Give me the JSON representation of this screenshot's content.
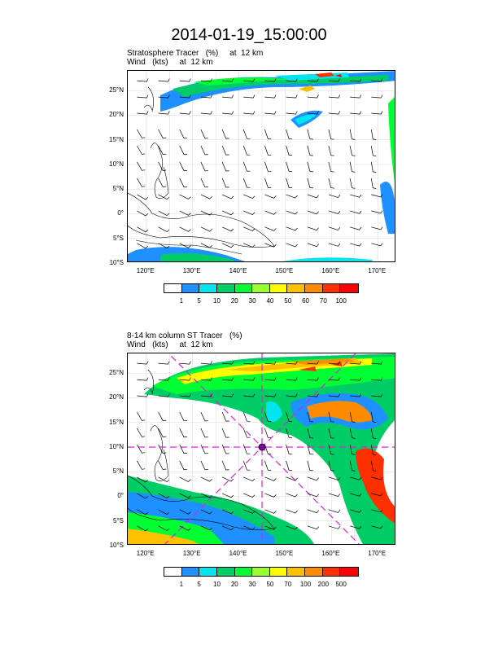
{
  "title": "2014-01-19_15:00:00",
  "panels": [
    {
      "label_line1": "Stratosphere Tracer   (%)     at  12 km",
      "label_line2": "Wind   (kts)     at  12 km",
      "colorbar_labels": [
        "1",
        "5",
        "10",
        "20",
        "30",
        "40",
        "50",
        "60",
        "70",
        "100"
      ],
      "colorbar_colors": [
        "#ffffff",
        "#1e90ff",
        "#00e5ee",
        "#00cd66",
        "#00ff33",
        "#9aff32",
        "#ffff00",
        "#ffc000",
        "#ff8c00",
        "#ff3000",
        "#ff0000"
      ]
    },
    {
      "label_line1": "8-14 km column ST Tracer   (%)",
      "label_line2": "Wind   (kts)     at  12 km",
      "colorbar_labels": [
        "1",
        "5",
        "10",
        "20",
        "30",
        "50",
        "70",
        "100",
        "200",
        "500"
      ],
      "colorbar_colors": [
        "#ffffff",
        "#1e90ff",
        "#00e5ee",
        "#00cd66",
        "#00ff33",
        "#9aff32",
        "#ffff00",
        "#ffc000",
        "#ff8c00",
        "#ff3000",
        "#ff0000"
      ]
    }
  ],
  "axes": {
    "lat_labels": [
      "25°N",
      "20°N",
      "15°N",
      "10°N",
      "5°N",
      "0°",
      "5°S",
      "10°S"
    ],
    "lat_values": [
      25,
      20,
      15,
      10,
      5,
      0,
      -5,
      -10
    ],
    "lon_labels": [
      "120°E",
      "130°E",
      "140°E",
      "150°E",
      "160°E",
      "170°E"
    ],
    "lon_values": [
      120,
      130,
      140,
      150,
      160,
      170
    ],
    "lon_range": [
      116,
      174
    ],
    "lat_range": [
      -10,
      29
    ]
  },
  "cross_section_center": {
    "lon": 145,
    "lat": 10
  },
  "accent_colors": {
    "cross_lines": "#e020e0"
  }
}
